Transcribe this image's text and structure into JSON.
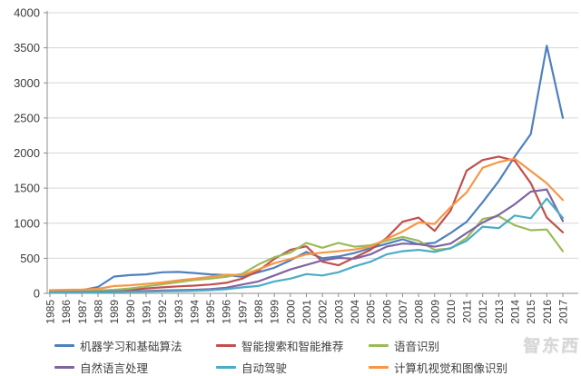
{
  "chart_data": {
    "type": "line",
    "title": "",
    "xlabel": "",
    "ylabel": "",
    "grid": true,
    "legend_position": "bottom",
    "ylim": [
      0,
      4000
    ],
    "yticks": [
      0,
      500,
      1000,
      1500,
      2000,
      2500,
      3000,
      3500,
      4000
    ],
    "x": [
      1985,
      1986,
      1987,
      1988,
      1989,
      1990,
      1991,
      1992,
      1993,
      1994,
      1995,
      1996,
      1997,
      1998,
      1999,
      2000,
      2001,
      2002,
      2003,
      2004,
      2005,
      2006,
      2007,
      2008,
      2009,
      2010,
      2011,
      2012,
      2013,
      2014,
      2015,
      2016,
      2017
    ],
    "series": [
      {
        "name": "机器学习和基础算法",
        "color": "#4F81BD",
        "values": [
          35,
          40,
          45,
          90,
          240,
          260,
          270,
          300,
          305,
          290,
          270,
          260,
          235,
          300,
          365,
          470,
          590,
          500,
          525,
          575,
          645,
          705,
          770,
          700,
          720,
          860,
          1020,
          1300,
          1600,
          1950,
          2270,
          3530,
          2500
        ]
      },
      {
        "name": "智能搜索和智能推荐",
        "color": "#C0504D",
        "values": [
          20,
          25,
          30,
          35,
          40,
          50,
          70,
          85,
          100,
          110,
          125,
          150,
          210,
          320,
          490,
          620,
          670,
          450,
          400,
          510,
          620,
          790,
          1020,
          1080,
          890,
          1180,
          1750,
          1900,
          1950,
          1890,
          1570,
          1080,
          870
        ]
      },
      {
        "name": "语音识别",
        "color": "#9BBB59",
        "values": [
          25,
          30,
          30,
          40,
          50,
          70,
          100,
          130,
          160,
          190,
          210,
          235,
          280,
          410,
          515,
          580,
          720,
          650,
          720,
          665,
          685,
          750,
          805,
          750,
          620,
          640,
          790,
          1060,
          1100,
          970,
          900,
          910,
          600
        ]
      },
      {
        "name": "自然语言处理",
        "color": "#8064A2",
        "values": [
          15,
          18,
          20,
          25,
          30,
          30,
          35,
          40,
          45,
          50,
          60,
          80,
          125,
          170,
          255,
          340,
          405,
          470,
          505,
          495,
          555,
          665,
          710,
          700,
          665,
          710,
          860,
          1010,
          1120,
          1270,
          1450,
          1480,
          1030
        ]
      },
      {
        "name": "自动驾驶",
        "color": "#4BACC6",
        "values": [
          12,
          15,
          15,
          18,
          20,
          22,
          25,
          28,
          32,
          38,
          45,
          60,
          85,
          105,
          170,
          210,
          275,
          255,
          300,
          385,
          450,
          555,
          600,
          620,
          590,
          645,
          750,
          950,
          930,
          1110,
          1070,
          1350,
          1075
        ]
      },
      {
        "name": "计算机视觉和图像识别",
        "color": "#F79646",
        "values": [
          45,
          50,
          55,
          65,
          105,
          115,
          135,
          155,
          185,
          210,
          235,
          265,
          260,
          340,
          430,
          490,
          555,
          580,
          600,
          625,
          665,
          775,
          880,
          1010,
          990,
          1230,
          1440,
          1790,
          1870,
          1920,
          1745,
          1570,
          1330
        ]
      }
    ]
  },
  "watermark": {
    "text": "智东西"
  },
  "axis_colors": {
    "gridline": "#d6d6d6",
    "axis": "#8c8c8c",
    "label": "#3c3c3c"
  }
}
